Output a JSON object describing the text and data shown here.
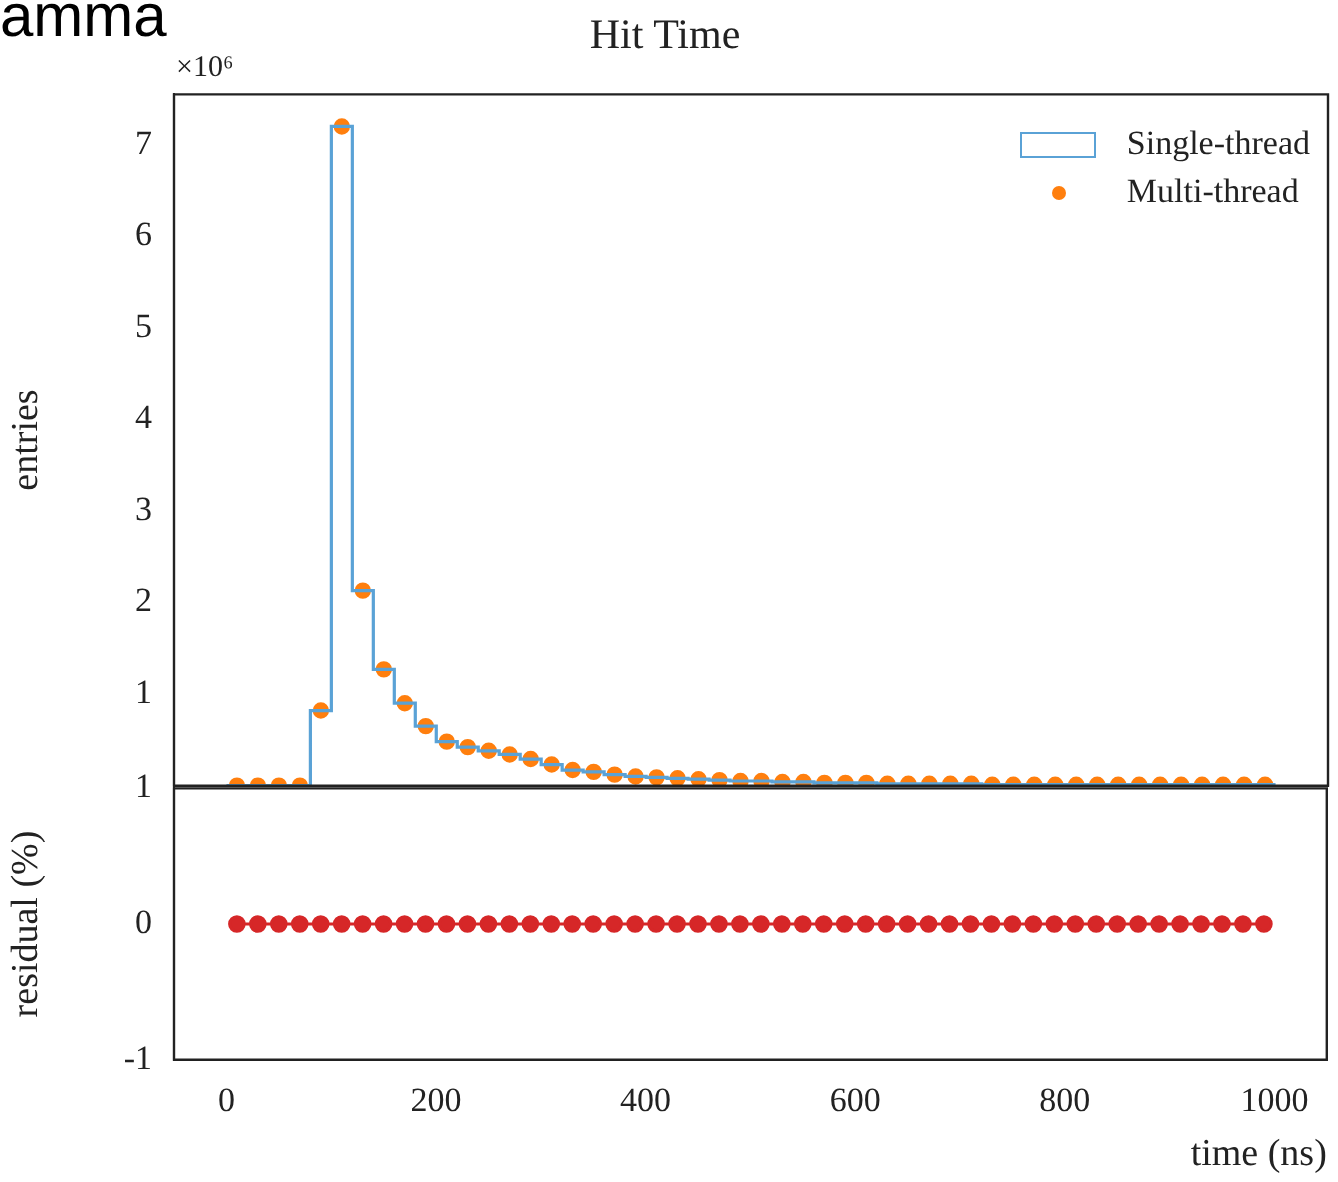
{
  "chart_data": [
    {
      "type": "histogram",
      "title": "Hit Time",
      "ylabel": "entries",
      "annotations": [
        "×10⁶",
        "amma"
      ],
      "bins": [
        0,
        20,
        40,
        60,
        80,
        100,
        120,
        140,
        160,
        180,
        200,
        220,
        240,
        260,
        280,
        300,
        320,
        340,
        360,
        380,
        400,
        420,
        440,
        460,
        480,
        500,
        520,
        540,
        560,
        580,
        600,
        620,
        640,
        660,
        680,
        700,
        720,
        740,
        760,
        780,
        800,
        820,
        840,
        860,
        880,
        900,
        920,
        940,
        960,
        980,
        1000
      ],
      "series": [
        {
          "name": "Single-thread",
          "color": "#5aa2d6",
          "values": [
            0,
            0,
            0,
            0,
            0.82,
            7.2,
            2.13,
            1.27,
            0.9,
            0.65,
            0.48,
            0.42,
            0.38,
            0.34,
            0.29,
            0.23,
            0.17,
            0.15,
            0.12,
            0.1,
            0.09,
            0.08,
            0.07,
            0.06,
            0.05,
            0.05,
            0.04,
            0.04,
            0.03,
            0.03,
            0.03,
            0.02,
            0.02,
            0.02,
            0.02,
            0.02,
            0.01,
            0.01,
            0.01,
            0.01,
            0.01,
            0.01,
            0.01,
            0.01,
            0.01,
            0.01,
            0.01,
            0.01,
            0.01,
            0.01
          ]
        },
        {
          "name": "Multi-thread",
          "color": "#ff7f0e",
          "type": "scatter",
          "x": [
            10,
            30,
            50,
            70,
            90,
            110,
            130,
            150,
            170,
            190,
            210,
            230,
            250,
            270,
            290,
            310,
            330,
            350,
            370,
            390,
            410,
            430,
            450,
            470,
            490,
            510,
            530,
            550,
            570,
            590,
            610,
            630,
            650,
            670,
            690,
            710,
            730,
            750,
            770,
            790,
            810,
            830,
            850,
            870,
            890,
            910,
            930,
            950,
            970,
            990
          ],
          "values": [
            0,
            0,
            0,
            0,
            0.82,
            7.2,
            2.13,
            1.27,
            0.9,
            0.65,
            0.48,
            0.42,
            0.38,
            0.34,
            0.29,
            0.23,
            0.17,
            0.15,
            0.12,
            0.1,
            0.09,
            0.08,
            0.07,
            0.06,
            0.05,
            0.05,
            0.04,
            0.04,
            0.03,
            0.03,
            0.03,
            0.02,
            0.02,
            0.02,
            0.02,
            0.02,
            0.01,
            0.01,
            0.01,
            0.01,
            0.01,
            0.01,
            0.01,
            0.01,
            0.01,
            0.01,
            0.01,
            0.01,
            0.01,
            0.01
          ]
        }
      ],
      "marker": "circle",
      "xlim": [
        -50,
        1050
      ],
      "ylim": [
        0,
        7.55
      ],
      "yticks": [
        1,
        2,
        3,
        4,
        5,
        6,
        7
      ],
      "tick_labels": "y",
      "legend": "top right",
      "grid": false
    },
    {
      "type": "line",
      "xlabel": "time (ns)",
      "ylabel": "residual (%)",
      "x": [
        10,
        30,
        50,
        70,
        90,
        110,
        130,
        150,
        170,
        190,
        210,
        230,
        250,
        270,
        290,
        310,
        330,
        350,
        370,
        390,
        410,
        430,
        450,
        470,
        490,
        510,
        530,
        550,
        570,
        590,
        610,
        630,
        650,
        670,
        690,
        710,
        730,
        750,
        770,
        790,
        810,
        830,
        850,
        870,
        890,
        910,
        930,
        950,
        970,
        990
      ],
      "series": [
        {
          "color": "#d62728",
          "values": [
            0,
            0,
            0,
            0,
            0,
            0,
            0,
            0,
            0,
            0,
            0,
            0,
            0,
            0,
            0,
            0,
            0,
            0,
            0,
            0,
            0,
            0,
            0,
            0,
            0,
            0,
            0,
            0,
            0,
            0,
            0,
            0,
            0,
            0,
            0,
            0,
            0,
            0,
            0,
            0,
            0,
            0,
            0,
            0,
            0,
            0,
            0,
            0,
            0,
            0
          ]
        }
      ],
      "marker": "circle",
      "xlim": [
        -50,
        1050
      ],
      "xticks": [
        0,
        200,
        400,
        600,
        800,
        1000
      ],
      "ylim": [
        -1,
        1
      ],
      "yticks": [
        -1,
        0,
        1
      ],
      "grid": false
    }
  ]
}
